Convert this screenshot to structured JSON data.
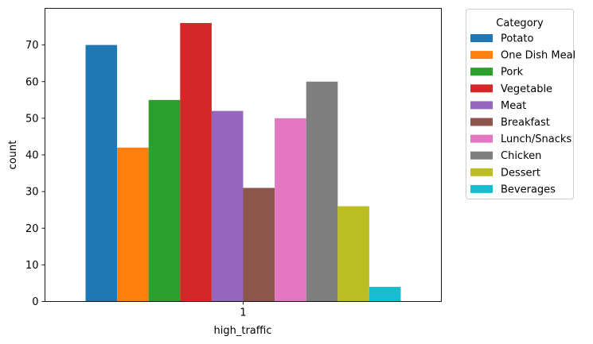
{
  "chart_data": {
    "type": "bar",
    "xlabel": "high_traffic",
    "ylabel": "count",
    "categories": [
      "1"
    ],
    "ylim": [
      0,
      80
    ],
    "yticks": [
      0,
      10,
      20,
      30,
      40,
      50,
      60,
      70
    ],
    "grid": false,
    "legend": {
      "title": "Category",
      "placement": "outside-right"
    },
    "series": [
      {
        "name": "Potato",
        "values": [
          70
        ],
        "color": "#1f77b4"
      },
      {
        "name": "One Dish Meal",
        "values": [
          42
        ],
        "color": "#ff7f0e"
      },
      {
        "name": "Pork",
        "values": [
          55
        ],
        "color": "#2ca02c"
      },
      {
        "name": "Vegetable",
        "values": [
          76
        ],
        "color": "#d62728"
      },
      {
        "name": "Meat",
        "values": [
          52
        ],
        "color": "#9467bd"
      },
      {
        "name": "Breakfast",
        "values": [
          31
        ],
        "color": "#8c564b"
      },
      {
        "name": "Lunch/Snacks",
        "values": [
          50
        ],
        "color": "#e377c2"
      },
      {
        "name": "Chicken",
        "values": [
          60
        ],
        "color": "#7f7f7f"
      },
      {
        "name": "Dessert",
        "values": [
          26
        ],
        "color": "#bcbd22"
      },
      {
        "name": "Beverages",
        "values": [
          4
        ],
        "color": "#17becf"
      }
    ]
  }
}
